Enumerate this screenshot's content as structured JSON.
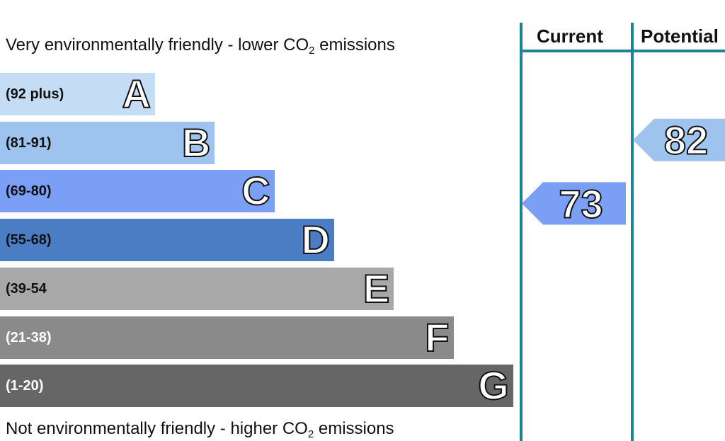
{
  "captions": {
    "top_main": "Very environmentally friendly - lower CO",
    "top_sub": "2",
    "top_end": " emissions",
    "bottom_main": "Not environmentally friendly - higher CO",
    "bottom_sub": "2",
    "bottom_end": " emissions"
  },
  "columns": {
    "current_label": "Current",
    "potential_label": "Potential"
  },
  "chart_data": {
    "type": "bar",
    "categories": [
      "A",
      "B",
      "C",
      "D",
      "E",
      "F",
      "G"
    ],
    "ranges": [
      "(92 plus)",
      "(81-91)",
      "(69-80)",
      "(55-68)",
      "(39-54",
      "(21-38)",
      "(1-20)"
    ],
    "colors": [
      "#c5ddf4",
      "#9dc3ee",
      "#7a9ff5",
      "#4a7dc4",
      "#a8a8a8",
      "#8a8a8a",
      "#666666"
    ],
    "range_text_colors": [
      "#111111",
      "#111111",
      "#111111",
      "#111111",
      "#111111",
      "#ffffff",
      "#ffffff"
    ],
    "current": {
      "value": 73,
      "band": "C",
      "color": "#7a9ff5"
    },
    "potential": {
      "value": 82,
      "band": "B",
      "color": "#9dc3ee"
    }
  }
}
